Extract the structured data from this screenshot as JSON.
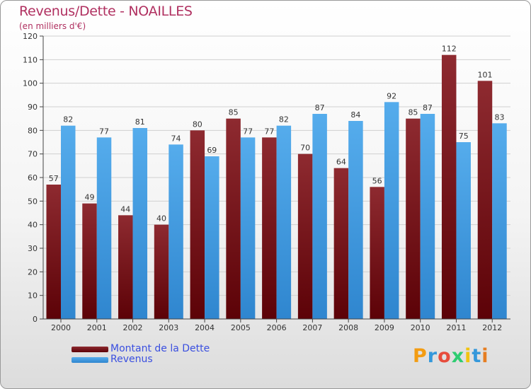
{
  "header": {
    "title": "Revenus/Dette - NOAILLES",
    "subtitle": "(en milliers d'€)"
  },
  "chart_data": {
    "type": "bar",
    "categories": [
      "2000",
      "2001",
      "2002",
      "2003",
      "2004",
      "2005",
      "2006",
      "2007",
      "2008",
      "2009",
      "2010",
      "2011",
      "2012"
    ],
    "series": [
      {
        "name": "Montant de la Dette",
        "values": [
          57,
          49,
          44,
          40,
          80,
          85,
          77,
          70,
          64,
          56,
          85,
          112,
          101
        ],
        "color": "#7a1218"
      },
      {
        "name": "Revenus",
        "values": [
          82,
          77,
          81,
          74,
          69,
          77,
          82,
          87,
          84,
          92,
          87,
          75,
          83
        ],
        "color": "#4aa3e8"
      }
    ],
    "ylim": [
      0,
      120
    ],
    "yticks": [
      0,
      10,
      20,
      30,
      40,
      50,
      60,
      70,
      80,
      90,
      100,
      110,
      120
    ],
    "grid": true,
    "legend": "bottom-left"
  },
  "logo": {
    "letters": [
      "P",
      "r",
      "o",
      "x",
      "i",
      "t",
      "i"
    ],
    "colors": [
      "#f39c12",
      "#3498db",
      "#e74c3c",
      "#2ecc71",
      "#f1c40f",
      "#3498db",
      "#e67e22"
    ]
  }
}
